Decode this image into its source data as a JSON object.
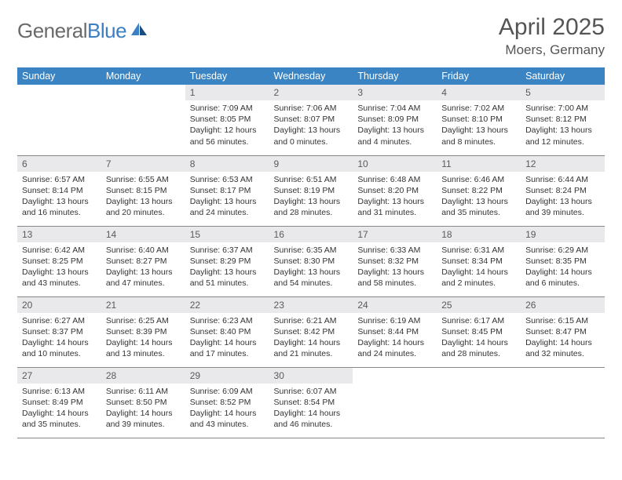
{
  "brand": {
    "part1": "General",
    "part2": "Blue"
  },
  "title": "April 2025",
  "location": "Moers, Germany",
  "colors": {
    "header_bg": "#3b84c4",
    "header_text": "#ffffff",
    "daynum_bg": "#e9e9ec",
    "daynum_text": "#5a5a5a",
    "body_text": "#333333",
    "rule": "#888888",
    "logo_gray": "#6a6a6a",
    "logo_blue": "#3b7fc4"
  },
  "typography": {
    "title_fontsize": 30,
    "location_fontsize": 17,
    "weekday_fontsize": 12.5,
    "daynum_fontsize": 12,
    "cell_fontsize": 10.5
  },
  "weekdays": [
    "Sunday",
    "Monday",
    "Tuesday",
    "Wednesday",
    "Thursday",
    "Friday",
    "Saturday"
  ],
  "weeks": [
    [
      null,
      null,
      {
        "n": "1",
        "sr": "7:09 AM",
        "ss": "8:05 PM",
        "dl": "12 hours and 56 minutes."
      },
      {
        "n": "2",
        "sr": "7:06 AM",
        "ss": "8:07 PM",
        "dl": "13 hours and 0 minutes."
      },
      {
        "n": "3",
        "sr": "7:04 AM",
        "ss": "8:09 PM",
        "dl": "13 hours and 4 minutes."
      },
      {
        "n": "4",
        "sr": "7:02 AM",
        "ss": "8:10 PM",
        "dl": "13 hours and 8 minutes."
      },
      {
        "n": "5",
        "sr": "7:00 AM",
        "ss": "8:12 PM",
        "dl": "13 hours and 12 minutes."
      }
    ],
    [
      {
        "n": "6",
        "sr": "6:57 AM",
        "ss": "8:14 PM",
        "dl": "13 hours and 16 minutes."
      },
      {
        "n": "7",
        "sr": "6:55 AM",
        "ss": "8:15 PM",
        "dl": "13 hours and 20 minutes."
      },
      {
        "n": "8",
        "sr": "6:53 AM",
        "ss": "8:17 PM",
        "dl": "13 hours and 24 minutes."
      },
      {
        "n": "9",
        "sr": "6:51 AM",
        "ss": "8:19 PM",
        "dl": "13 hours and 28 minutes."
      },
      {
        "n": "10",
        "sr": "6:48 AM",
        "ss": "8:20 PM",
        "dl": "13 hours and 31 minutes."
      },
      {
        "n": "11",
        "sr": "6:46 AM",
        "ss": "8:22 PM",
        "dl": "13 hours and 35 minutes."
      },
      {
        "n": "12",
        "sr": "6:44 AM",
        "ss": "8:24 PM",
        "dl": "13 hours and 39 minutes."
      }
    ],
    [
      {
        "n": "13",
        "sr": "6:42 AM",
        "ss": "8:25 PM",
        "dl": "13 hours and 43 minutes."
      },
      {
        "n": "14",
        "sr": "6:40 AM",
        "ss": "8:27 PM",
        "dl": "13 hours and 47 minutes."
      },
      {
        "n": "15",
        "sr": "6:37 AM",
        "ss": "8:29 PM",
        "dl": "13 hours and 51 minutes."
      },
      {
        "n": "16",
        "sr": "6:35 AM",
        "ss": "8:30 PM",
        "dl": "13 hours and 54 minutes."
      },
      {
        "n": "17",
        "sr": "6:33 AM",
        "ss": "8:32 PM",
        "dl": "13 hours and 58 minutes."
      },
      {
        "n": "18",
        "sr": "6:31 AM",
        "ss": "8:34 PM",
        "dl": "14 hours and 2 minutes."
      },
      {
        "n": "19",
        "sr": "6:29 AM",
        "ss": "8:35 PM",
        "dl": "14 hours and 6 minutes."
      }
    ],
    [
      {
        "n": "20",
        "sr": "6:27 AM",
        "ss": "8:37 PM",
        "dl": "14 hours and 10 minutes."
      },
      {
        "n": "21",
        "sr": "6:25 AM",
        "ss": "8:39 PM",
        "dl": "14 hours and 13 minutes."
      },
      {
        "n": "22",
        "sr": "6:23 AM",
        "ss": "8:40 PM",
        "dl": "14 hours and 17 minutes."
      },
      {
        "n": "23",
        "sr": "6:21 AM",
        "ss": "8:42 PM",
        "dl": "14 hours and 21 minutes."
      },
      {
        "n": "24",
        "sr": "6:19 AM",
        "ss": "8:44 PM",
        "dl": "14 hours and 24 minutes."
      },
      {
        "n": "25",
        "sr": "6:17 AM",
        "ss": "8:45 PM",
        "dl": "14 hours and 28 minutes."
      },
      {
        "n": "26",
        "sr": "6:15 AM",
        "ss": "8:47 PM",
        "dl": "14 hours and 32 minutes."
      }
    ],
    [
      {
        "n": "27",
        "sr": "6:13 AM",
        "ss": "8:49 PM",
        "dl": "14 hours and 35 minutes."
      },
      {
        "n": "28",
        "sr": "6:11 AM",
        "ss": "8:50 PM",
        "dl": "14 hours and 39 minutes."
      },
      {
        "n": "29",
        "sr": "6:09 AM",
        "ss": "8:52 PM",
        "dl": "14 hours and 43 minutes."
      },
      {
        "n": "30",
        "sr": "6:07 AM",
        "ss": "8:54 PM",
        "dl": "14 hours and 46 minutes."
      },
      null,
      null,
      null
    ]
  ],
  "labels": {
    "sunrise": "Sunrise: ",
    "sunset": "Sunset: ",
    "daylight": "Daylight: "
  }
}
